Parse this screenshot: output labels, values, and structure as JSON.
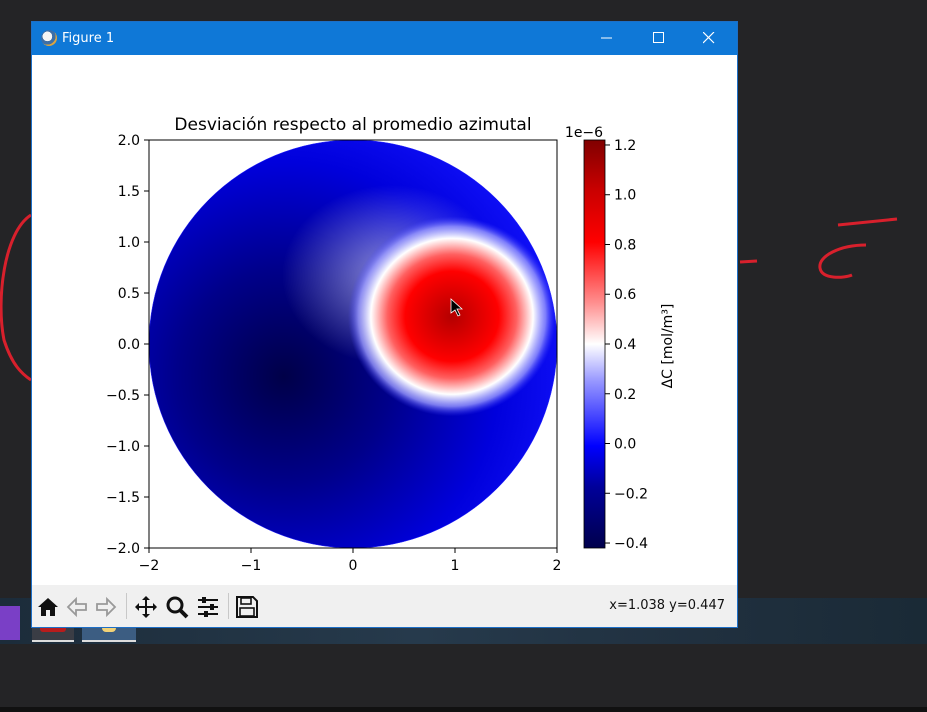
{
  "window": {
    "title": "Figure 1"
  },
  "toolbar": {
    "buttons": [
      "home-icon",
      "back-icon",
      "forward-icon",
      "pan-icon",
      "zoom-icon",
      "configure-icon",
      "save-icon"
    ],
    "coords": "x=1.038 y=0.447"
  },
  "colors": {
    "titlebar": "#0f78d7",
    "cmap_low": "#00004c",
    "cmap_mid": "#ffffff",
    "cmap_high": "#800000"
  },
  "chart_data": {
    "type": "heatmap",
    "title": "Desviación respecto al promedio azimutal",
    "xlabel": "",
    "ylabel": "",
    "xlim": [
      -2,
      2
    ],
    "ylim": [
      -2,
      2
    ],
    "x_ticks": [
      "−2",
      "−1",
      "0",
      "1",
      "2"
    ],
    "y_ticks": [
      "2.0",
      "1.5",
      "1.0",
      "0.5",
      "0.0",
      "−0.5",
      "−1.0",
      "−1.5",
      "−2.0"
    ],
    "domain": "circle",
    "hot_spot_center": [
      1.0,
      0.35
    ],
    "cold_region_center": [
      -0.6,
      -0.4
    ],
    "colorbar": {
      "label": "ΔC [mol/m³]",
      "offset": "1e−6",
      "ticks": [
        "1.2",
        "1.0",
        "0.8",
        "0.6",
        "0.4",
        "0.2",
        "0.0",
        "−0.2",
        "−0.4"
      ],
      "range": [
        -0.42,
        1.22
      ],
      "cmap": "seismic"
    }
  }
}
